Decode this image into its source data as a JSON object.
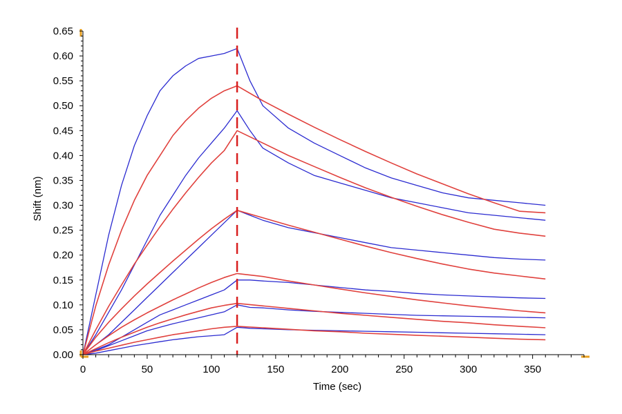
{
  "chart_data": {
    "type": "line",
    "title": "",
    "xlabel": "Time (sec)",
    "ylabel": "Shift (nm)",
    "xlim": [
      0,
      390
    ],
    "ylim": [
      0,
      0.65
    ],
    "x_ticks": [
      0,
      50,
      100,
      150,
      200,
      250,
      300,
      350
    ],
    "y_ticks": [
      0.0,
      0.05,
      0.1,
      0.15,
      0.2,
      0.25,
      0.3,
      0.35,
      0.4,
      0.45,
      0.5,
      0.55,
      0.6,
      0.65
    ],
    "x_tick_labels": [
      "0",
      "50",
      "100",
      "150",
      "200",
      "250",
      "300",
      "350"
    ],
    "y_tick_labels": [
      "0.00",
      "0.05",
      "0.10",
      "0.15",
      "0.20",
      "0.25",
      "0.30",
      "0.35",
      "0.40",
      "0.45",
      "0.50",
      "0.55",
      "0.60",
      "0.65"
    ],
    "dissociation_start": 120,
    "grid": false,
    "colors": {
      "data": "#2a2ad0",
      "fit": "#e0403c",
      "marker": "#d81e1e",
      "corner": "#e8a020"
    },
    "series": [
      {
        "type": "measured",
        "points": [
          [
            0,
            0
          ],
          [
            10,
            0.12
          ],
          [
            20,
            0.24
          ],
          [
            30,
            0.34
          ],
          [
            40,
            0.42
          ],
          [
            50,
            0.48
          ],
          [
            60,
            0.53
          ],
          [
            70,
            0.56
          ],
          [
            80,
            0.58
          ],
          [
            90,
            0.595
          ],
          [
            100,
            0.6
          ],
          [
            110,
            0.605
          ],
          [
            120,
            0.615
          ],
          [
            130,
            0.55
          ],
          [
            140,
            0.5
          ],
          [
            160,
            0.455
          ],
          [
            180,
            0.425
          ],
          [
            200,
            0.4
          ],
          [
            220,
            0.375
          ],
          [
            240,
            0.355
          ],
          [
            260,
            0.34
          ],
          [
            280,
            0.325
          ],
          [
            300,
            0.315
          ],
          [
            320,
            0.31
          ],
          [
            340,
            0.305
          ],
          [
            360,
            0.3
          ]
        ]
      },
      {
        "type": "fit",
        "points": [
          [
            0,
            0
          ],
          [
            10,
            0.098
          ],
          [
            20,
            0.18
          ],
          [
            30,
            0.25
          ],
          [
            40,
            0.31
          ],
          [
            50,
            0.36
          ],
          [
            60,
            0.4
          ],
          [
            70,
            0.44
          ],
          [
            80,
            0.47
          ],
          [
            90,
            0.495
          ],
          [
            100,
            0.515
          ],
          [
            110,
            0.53
          ],
          [
            120,
            0.54
          ],
          [
            140,
            0.51
          ],
          [
            160,
            0.483
          ],
          [
            180,
            0.457
          ],
          [
            200,
            0.432
          ],
          [
            220,
            0.408
          ],
          [
            240,
            0.385
          ],
          [
            260,
            0.363
          ],
          [
            280,
            0.343
          ],
          [
            300,
            0.323
          ],
          [
            320,
            0.305
          ],
          [
            340,
            0.288
          ],
          [
            360,
            0.285
          ]
        ]
      },
      {
        "type": "measured",
        "points": [
          [
            0,
            0
          ],
          [
            10,
            0.04
          ],
          [
            20,
            0.085
          ],
          [
            30,
            0.13
          ],
          [
            40,
            0.18
          ],
          [
            50,
            0.23
          ],
          [
            60,
            0.28
          ],
          [
            70,
            0.32
          ],
          [
            80,
            0.36
          ],
          [
            90,
            0.395
          ],
          [
            100,
            0.425
          ],
          [
            110,
            0.455
          ],
          [
            120,
            0.49
          ],
          [
            130,
            0.45
          ],
          [
            140,
            0.415
          ],
          [
            160,
            0.385
          ],
          [
            180,
            0.36
          ],
          [
            200,
            0.345
          ],
          [
            220,
            0.33
          ],
          [
            240,
            0.315
          ],
          [
            260,
            0.305
          ],
          [
            280,
            0.295
          ],
          [
            300,
            0.285
          ],
          [
            320,
            0.28
          ],
          [
            340,
            0.275
          ],
          [
            360,
            0.27
          ]
        ]
      },
      {
        "type": "fit",
        "points": [
          [
            0,
            0
          ],
          [
            10,
            0.05
          ],
          [
            20,
            0.097
          ],
          [
            30,
            0.14
          ],
          [
            40,
            0.182
          ],
          [
            50,
            0.22
          ],
          [
            60,
            0.257
          ],
          [
            70,
            0.292
          ],
          [
            80,
            0.325
          ],
          [
            90,
            0.356
          ],
          [
            100,
            0.385
          ],
          [
            110,
            0.41
          ],
          [
            120,
            0.45
          ],
          [
            140,
            0.425
          ],
          [
            160,
            0.4
          ],
          [
            180,
            0.378
          ],
          [
            200,
            0.356
          ],
          [
            220,
            0.335
          ],
          [
            240,
            0.316
          ],
          [
            260,
            0.298
          ],
          [
            280,
            0.281
          ],
          [
            300,
            0.266
          ],
          [
            320,
            0.252
          ],
          [
            340,
            0.244
          ],
          [
            360,
            0.238
          ]
        ]
      },
      {
        "type": "measured",
        "points": [
          [
            0,
            0
          ],
          [
            10,
            0.02
          ],
          [
            20,
            0.04
          ],
          [
            30,
            0.065
          ],
          [
            40,
            0.09
          ],
          [
            50,
            0.115
          ],
          [
            60,
            0.14
          ],
          [
            70,
            0.165
          ],
          [
            80,
            0.19
          ],
          [
            90,
            0.215
          ],
          [
            100,
            0.24
          ],
          [
            110,
            0.265
          ],
          [
            120,
            0.29
          ],
          [
            130,
            0.28
          ],
          [
            140,
            0.27
          ],
          [
            160,
            0.255
          ],
          [
            180,
            0.245
          ],
          [
            200,
            0.235
          ],
          [
            220,
            0.225
          ],
          [
            240,
            0.215
          ],
          [
            260,
            0.21
          ],
          [
            280,
            0.205
          ],
          [
            300,
            0.2
          ],
          [
            320,
            0.195
          ],
          [
            340,
            0.192
          ],
          [
            360,
            0.19
          ]
        ]
      },
      {
        "type": "fit",
        "points": [
          [
            0,
            0
          ],
          [
            10,
            0.035
          ],
          [
            20,
            0.065
          ],
          [
            30,
            0.092
          ],
          [
            40,
            0.118
          ],
          [
            50,
            0.142
          ],
          [
            60,
            0.165
          ],
          [
            70,
            0.188
          ],
          [
            80,
            0.21
          ],
          [
            90,
            0.232
          ],
          [
            100,
            0.253
          ],
          [
            110,
            0.272
          ],
          [
            120,
            0.29
          ],
          [
            140,
            0.275
          ],
          [
            160,
            0.26
          ],
          [
            180,
            0.246
          ],
          [
            200,
            0.232
          ],
          [
            220,
            0.218
          ],
          [
            240,
            0.205
          ],
          [
            260,
            0.193
          ],
          [
            280,
            0.182
          ],
          [
            300,
            0.172
          ],
          [
            320,
            0.164
          ],
          [
            340,
            0.158
          ],
          [
            360,
            0.152
          ]
        ]
      },
      {
        "type": "measured",
        "points": [
          [
            0,
            0
          ],
          [
            10,
            0.01
          ],
          [
            20,
            0.02
          ],
          [
            30,
            0.035
          ],
          [
            40,
            0.05
          ],
          [
            50,
            0.065
          ],
          [
            60,
            0.08
          ],
          [
            70,
            0.09
          ],
          [
            80,
            0.1
          ],
          [
            90,
            0.11
          ],
          [
            100,
            0.12
          ],
          [
            110,
            0.13
          ],
          [
            120,
            0.15
          ],
          [
            130,
            0.15
          ],
          [
            140,
            0.148
          ],
          [
            160,
            0.145
          ],
          [
            180,
            0.14
          ],
          [
            200,
            0.135
          ],
          [
            220,
            0.13
          ],
          [
            240,
            0.127
          ],
          [
            260,
            0.123
          ],
          [
            280,
            0.12
          ],
          [
            300,
            0.118
          ],
          [
            320,
            0.116
          ],
          [
            340,
            0.114
          ],
          [
            360,
            0.113
          ]
        ]
      },
      {
        "type": "fit",
        "points": [
          [
            0,
            0
          ],
          [
            10,
            0.02
          ],
          [
            20,
            0.038
          ],
          [
            30,
            0.055
          ],
          [
            40,
            0.07
          ],
          [
            50,
            0.084
          ],
          [
            60,
            0.097
          ],
          [
            70,
            0.11
          ],
          [
            80,
            0.122
          ],
          [
            90,
            0.134
          ],
          [
            100,
            0.145
          ],
          [
            110,
            0.155
          ],
          [
            120,
            0.163
          ],
          [
            140,
            0.157
          ],
          [
            160,
            0.148
          ],
          [
            180,
            0.14
          ],
          [
            200,
            0.132
          ],
          [
            220,
            0.124
          ],
          [
            240,
            0.117
          ],
          [
            260,
            0.11
          ],
          [
            280,
            0.104
          ],
          [
            300,
            0.098
          ],
          [
            320,
            0.093
          ],
          [
            340,
            0.088
          ],
          [
            360,
            0.084
          ]
        ]
      },
      {
        "type": "measured",
        "points": [
          [
            0,
            0
          ],
          [
            10,
            0.008
          ],
          [
            20,
            0.018
          ],
          [
            30,
            0.028
          ],
          [
            40,
            0.038
          ],
          [
            50,
            0.048
          ],
          [
            60,
            0.055
          ],
          [
            70,
            0.062
          ],
          [
            80,
            0.068
          ],
          [
            90,
            0.074
          ],
          [
            100,
            0.08
          ],
          [
            110,
            0.086
          ],
          [
            120,
            0.1
          ],
          [
            130,
            0.095
          ],
          [
            140,
            0.094
          ],
          [
            160,
            0.09
          ],
          [
            180,
            0.087
          ],
          [
            200,
            0.085
          ],
          [
            220,
            0.083
          ],
          [
            240,
            0.081
          ],
          [
            260,
            0.079
          ],
          [
            280,
            0.078
          ],
          [
            300,
            0.077
          ],
          [
            320,
            0.076
          ],
          [
            340,
            0.075
          ],
          [
            360,
            0.074
          ]
        ]
      },
      {
        "type": "fit",
        "points": [
          [
            0,
            0
          ],
          [
            10,
            0.012
          ],
          [
            20,
            0.024
          ],
          [
            30,
            0.035
          ],
          [
            40,
            0.045
          ],
          [
            50,
            0.055
          ],
          [
            60,
            0.064
          ],
          [
            70,
            0.072
          ],
          [
            80,
            0.08
          ],
          [
            90,
            0.087
          ],
          [
            100,
            0.094
          ],
          [
            110,
            0.099
          ],
          [
            120,
            0.103
          ],
          [
            140,
            0.098
          ],
          [
            160,
            0.093
          ],
          [
            180,
            0.088
          ],
          [
            200,
            0.083
          ],
          [
            220,
            0.079
          ],
          [
            240,
            0.075
          ],
          [
            260,
            0.071
          ],
          [
            280,
            0.067
          ],
          [
            300,
            0.064
          ],
          [
            320,
            0.06
          ],
          [
            340,
            0.057
          ],
          [
            360,
            0.054
          ]
        ]
      },
      {
        "type": "measured",
        "points": [
          [
            0,
            0
          ],
          [
            10,
            0.003
          ],
          [
            20,
            0.008
          ],
          [
            30,
            0.013
          ],
          [
            40,
            0.018
          ],
          [
            50,
            0.022
          ],
          [
            60,
            0.026
          ],
          [
            70,
            0.03
          ],
          [
            80,
            0.033
          ],
          [
            90,
            0.036
          ],
          [
            100,
            0.038
          ],
          [
            110,
            0.04
          ],
          [
            120,
            0.055
          ],
          [
            130,
            0.053
          ],
          [
            140,
            0.052
          ],
          [
            160,
            0.05
          ],
          [
            180,
            0.049
          ],
          [
            200,
            0.048
          ],
          [
            220,
            0.047
          ],
          [
            240,
            0.046
          ],
          [
            260,
            0.045
          ],
          [
            280,
            0.044
          ],
          [
            300,
            0.043
          ],
          [
            320,
            0.042
          ],
          [
            340,
            0.041
          ],
          [
            360,
            0.04
          ]
        ]
      },
      {
        "type": "fit",
        "points": [
          [
            0,
            0
          ],
          [
            10,
            0.007
          ],
          [
            20,
            0.013
          ],
          [
            30,
            0.019
          ],
          [
            40,
            0.025
          ],
          [
            50,
            0.03
          ],
          [
            60,
            0.035
          ],
          [
            70,
            0.04
          ],
          [
            80,
            0.044
          ],
          [
            90,
            0.048
          ],
          [
            100,
            0.052
          ],
          [
            110,
            0.055
          ],
          [
            120,
            0.057
          ],
          [
            140,
            0.054
          ],
          [
            160,
            0.051
          ],
          [
            180,
            0.048
          ],
          [
            200,
            0.046
          ],
          [
            220,
            0.043
          ],
          [
            240,
            0.041
          ],
          [
            260,
            0.039
          ],
          [
            280,
            0.037
          ],
          [
            300,
            0.035
          ],
          [
            320,
            0.033
          ],
          [
            340,
            0.031
          ],
          [
            360,
            0.03
          ]
        ]
      }
    ]
  }
}
